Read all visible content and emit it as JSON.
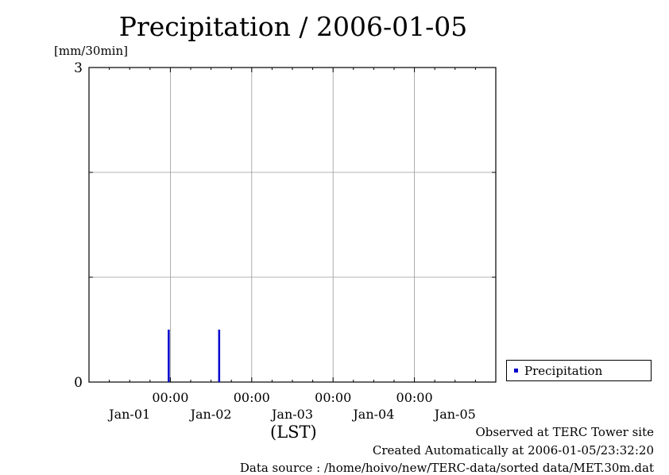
{
  "chart_data": {
    "type": "bar",
    "title": "Precipitation / 2006-01-05",
    "ylabel": "[mm/30min]",
    "xlabel": "(LST)",
    "ylim": [
      0,
      3
    ],
    "yticks": [
      "0",
      "3"
    ],
    "y_gridlines": [
      1,
      2
    ],
    "x_tick_times": [
      "00:00",
      "00:00",
      "00:00",
      "00:00"
    ],
    "x_tick_dates": [
      "Jan-01",
      "Jan-02",
      "Jan-03",
      "Jan-04",
      "Jan-05"
    ],
    "xlim_days": [
      0,
      5
    ],
    "x_gridlines_days": [
      1,
      2,
      3,
      4
    ],
    "grid": true,
    "legend_position": "right-bottom",
    "series": [
      {
        "name": "Precipitation",
        "color": "#0000cc",
        "x_days": [
          0.98,
          1.6
        ],
        "values": [
          0.5,
          0.5
        ]
      }
    ]
  },
  "footer": {
    "line1": "Observed at TERC Tower site",
    "line2": "Created Automatically at 2006-01-05/23:32:20",
    "line3": "Data source : /home/hoivo/new/TERC-data/sorted  data/MET.30m.dat"
  }
}
